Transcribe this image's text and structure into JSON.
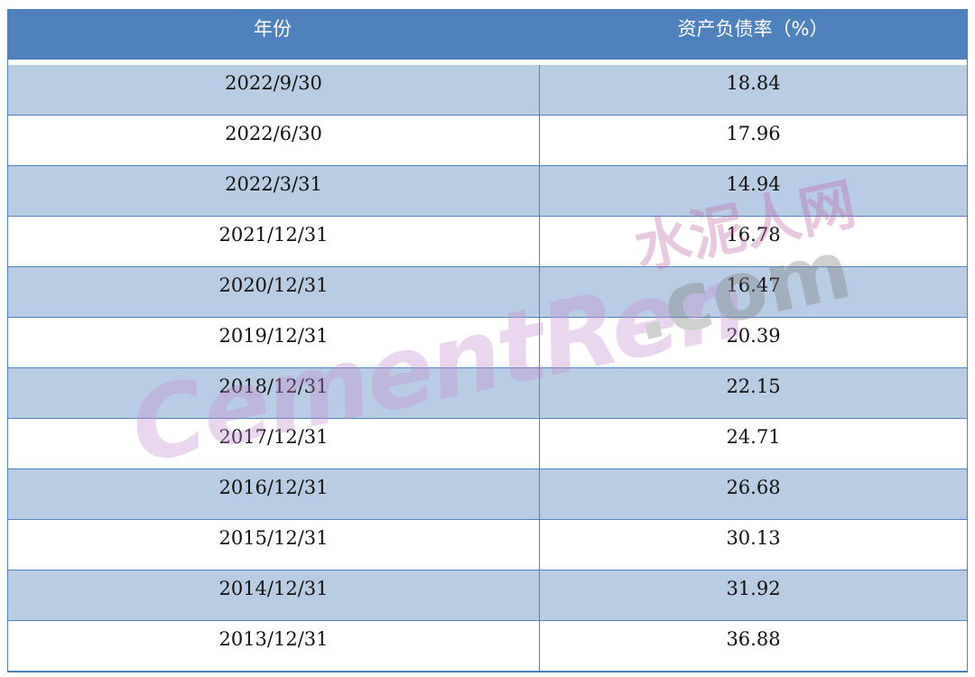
{
  "table": {
    "headers": [
      "年份",
      "资产负债率（%）"
    ],
    "rows": [
      {
        "date": "2022/9/30",
        "value": "18.84"
      },
      {
        "date": "2022/6/30",
        "value": "17.96"
      },
      {
        "date": "2022/3/31",
        "value": "14.94"
      },
      {
        "date": "2021/12/31",
        "value": "16.78"
      },
      {
        "date": "2020/12/31",
        "value": "16.47"
      },
      {
        "date": "2019/12/31",
        "value": "20.39"
      },
      {
        "date": "2018/12/31",
        "value": "22.15"
      },
      {
        "date": "2017/12/31",
        "value": "24.71"
      },
      {
        "date": "2016/12/31",
        "value": "26.68"
      },
      {
        "date": "2015/12/31",
        "value": "30.13"
      },
      {
        "date": "2014/12/31",
        "value": "31.92"
      },
      {
        "date": "2013/12/31",
        "value": "36.88"
      }
    ]
  },
  "watermark": {
    "en": "CementRen",
    "cn": "水泥人网",
    "com": ".com"
  },
  "colors": {
    "header": "#4f81bd",
    "band": "#b8cce4"
  }
}
